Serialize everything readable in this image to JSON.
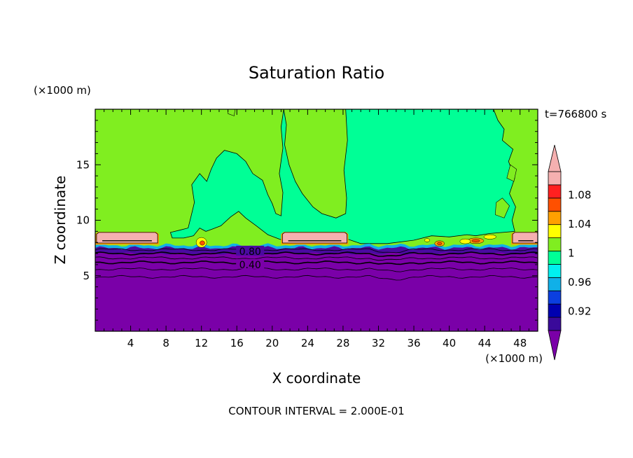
{
  "chart_data": {
    "type": "heatmap",
    "title": "Saturation Ratio",
    "xlabel": "X coordinate",
    "ylabel": "Z coordinate",
    "x_unit": "(×1000 m)",
    "y_unit": "(×1000 m)",
    "time_label": "t=766800 s",
    "footer": "CONTOUR INTERVAL = 2.000E-01",
    "xlim": [
      0,
      50
    ],
    "ylim": [
      0,
      20
    ],
    "x_ticks": [
      4,
      8,
      12,
      16,
      20,
      24,
      28,
      32,
      36,
      40,
      44,
      48
    ],
    "y_ticks": [
      5,
      10,
      15
    ],
    "contour_labels": [
      {
        "text": "0.80",
        "x": 17.5,
        "z": 7.2
      },
      {
        "text": "0.40",
        "x": 17.5,
        "z": 6.0
      }
    ],
    "colorbar": {
      "tick_labels": [
        "0.92",
        "0.96",
        "1",
        "1.04",
        "1.08"
      ],
      "levels": [
        0.9,
        0.92,
        0.94,
        0.96,
        0.98,
        1.0,
        1.02,
        1.04,
        1.06,
        1.08,
        1.1
      ],
      "colors": [
        "#3a0a9a",
        "#0000b0",
        "#0b3fe0",
        "#10b0e8",
        "#00f0f0",
        "#00ff96",
        "#80ee20",
        "#ffff00",
        "#ffa000",
        "#ff5000",
        "#ff2020",
        "#f5b0b0"
      ],
      "under_color": "#7a00a8",
      "over_color": "#f5b0b0"
    },
    "regions": {
      "upper_left_color": "#80ee20",
      "upper_right_color": "#00ff96",
      "cloud_color": "#f5b0b0",
      "dry_color": "#7a00a8"
    }
  }
}
